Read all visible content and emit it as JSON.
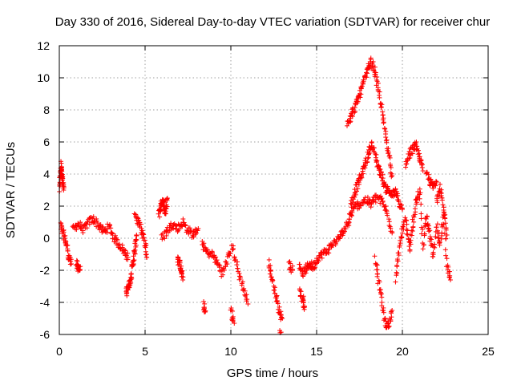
{
  "chart_data": {
    "type": "scatter",
    "title": "Day 330 of 2016, Sidereal Day-to-day VTEC variation (SDTVAR) for receiver chur",
    "xlabel": "GPS time / hours",
    "ylabel": "SDTVAR / TECUs",
    "xlim": [
      0,
      25
    ],
    "ylim": [
      -6,
      12
    ],
    "xticks": [
      0,
      5,
      10,
      15,
      20,
      25
    ],
    "yticks": [
      -6,
      -4,
      -2,
      0,
      2,
      4,
      6,
      8,
      10,
      12
    ],
    "xtick_labels": [
      "0",
      "5",
      "10",
      "15",
      "20",
      "25"
    ],
    "ytick_labels": [
      "-6",
      "-4",
      "-2",
      "0",
      "2",
      "4",
      "6",
      "8",
      "10",
      "12"
    ],
    "grid": true,
    "marker": "+",
    "color": "#ff0000",
    "series": [
      {
        "name": "SDTVAR",
        "segments": [
          {
            "x": [
              0.0,
              0.05,
              0.1,
              0.15,
              0.2,
              0.25
            ],
            "y": [
              3.0,
              3.8,
              4.6,
              4.1,
              3.5,
              3.0
            ]
          },
          {
            "x": [
              0.1,
              0.25,
              0.4,
              0.55,
              0.7
            ],
            "y": [
              0.8,
              0.2,
              -0.3,
              -1.1,
              -1.6
            ]
          },
          {
            "x": [
              0.8,
              1.1,
              1.4,
              1.7,
              2.0,
              2.3,
              2.6,
              2.9,
              3.2,
              3.5,
              3.8,
              4.0
            ],
            "y": [
              0.6,
              0.9,
              0.5,
              1.0,
              1.2,
              0.8,
              0.4,
              0.7,
              0.0,
              -0.4,
              -0.8,
              -1.2
            ]
          },
          {
            "x": [
              1.0,
              1.1,
              1.2
            ],
            "y": [
              -1.5,
              -1.9,
              -2.0
            ]
          },
          {
            "x": [
              3.9,
              4.0,
              4.1,
              4.2,
              4.3,
              4.4,
              4.5
            ],
            "y": [
              -3.4,
              -3.0,
              -2.8,
              -2.2,
              -1.5,
              -0.8,
              0.2
            ]
          },
          {
            "x": [
              4.4,
              4.6,
              4.8,
              5.0,
              5.1
            ],
            "y": [
              1.6,
              1.0,
              0.4,
              -0.4,
              -1.2
            ]
          },
          {
            "x": [
              5.8,
              5.9,
              6.0,
              6.1,
              6.2,
              6.3
            ],
            "y": [
              1.5,
              2.0,
              2.4,
              2.0,
              1.6,
              2.5
            ]
          },
          {
            "x": [
              6.0,
              6.3,
              6.6,
              6.9,
              7.2,
              7.5,
              7.8,
              8.1
            ],
            "y": [
              0.0,
              0.5,
              0.9,
              0.6,
              1.0,
              0.5,
              0.2,
              0.6
            ]
          },
          {
            "x": [
              6.9,
              7.0,
              7.1,
              7.2
            ],
            "y": [
              -1.2,
              -1.6,
              -2.0,
              -2.6
            ]
          },
          {
            "x": [
              8.3,
              8.6,
              8.9,
              9.2,
              9.5,
              9.8,
              10.1,
              10.4,
              10.7,
              11.0
            ],
            "y": [
              -0.2,
              -0.9,
              -1.0,
              -1.5,
              -2.2,
              -1.4,
              -0.5,
              -2.0,
              -3.0,
              -4.1
            ]
          },
          {
            "x": [
              8.4,
              8.5
            ],
            "y": [
              -4.1,
              -4.6
            ]
          },
          {
            "x": [
              10.0,
              10.2
            ],
            "y": [
              -4.4,
              -5.3
            ]
          },
          {
            "x": [
              12.2,
              12.4,
              12.6,
              12.8,
              13.0
            ],
            "y": [
              -1.5,
              -2.5,
              -3.5,
              -4.5,
              -5.0
            ]
          },
          {
            "x": [
              12.9
            ],
            "y": [
              -5.8
            ]
          },
          {
            "x": [
              13.4,
              13.6
            ],
            "y": [
              -1.6,
              -2.0
            ]
          },
          {
            "x": [
              14.0,
              14.2,
              14.4,
              14.6,
              14.8,
              15.0,
              15.3,
              15.6,
              15.9,
              16.2,
              16.5,
              16.8,
              17.0
            ],
            "y": [
              -1.6,
              -2.2,
              -1.9,
              -1.6,
              -1.8,
              -1.3,
              -1.0,
              -0.8,
              -0.4,
              -0.1,
              0.3,
              0.9,
              1.6
            ]
          },
          {
            "x": [
              14.0,
              14.2,
              14.3
            ],
            "y": [
              -3.2,
              -3.8,
              -4.3
            ]
          },
          {
            "x": [
              17.0,
              17.2,
              17.4,
              17.6,
              17.8,
              18.0,
              18.2,
              18.4,
              18.6,
              18.8,
              19.0,
              19.2,
              19.4,
              19.6,
              19.8,
              20.0
            ],
            "y": [
              2.0,
              2.8,
              3.4,
              3.9,
              4.5,
              5.2,
              5.9,
              5.2,
              4.4,
              3.9,
              3.1,
              3.0,
              2.7,
              2.9,
              2.2,
              1.8
            ]
          },
          {
            "x": [
              17.0,
              17.3,
              17.6,
              17.9,
              18.2,
              18.5,
              18.8,
              19.1,
              19.4
            ],
            "y": [
              1.5,
              2.0,
              2.2,
              2.4,
              2.1,
              2.6,
              2.3,
              1.6,
              0.4
            ]
          },
          {
            "x": [
              16.8,
              17.0,
              17.2,
              17.4,
              17.6,
              17.8,
              18.0,
              18.2,
              18.4,
              18.6,
              18.8,
              19.0,
              19.2,
              19.4
            ],
            "y": [
              7.2,
              7.6,
              8.1,
              8.6,
              9.2,
              9.9,
              10.6,
              11.0,
              10.4,
              9.2,
              8.0,
              6.6,
              5.3,
              3.9
            ]
          },
          {
            "x": [
              18.4,
              18.6,
              18.8,
              19.0,
              19.2,
              19.4
            ],
            "y": [
              -1.2,
              -2.6,
              -4.0,
              -5.3,
              -5.5,
              -4.5
            ]
          },
          {
            "x": [
              19.6,
              19.8,
              20.0,
              20.2,
              20.4,
              20.6,
              20.8,
              21.0,
              21.2,
              21.4,
              21.6,
              21.8,
              22.0,
              22.2,
              22.4,
              22.6
            ],
            "y": [
              -2.6,
              -1.0,
              0.5,
              1.2,
              -0.8,
              0.9,
              2.4,
              3.0,
              -0.6,
              1.4,
              0.1,
              -1.2,
              0.8,
              -0.6,
              1.8,
              0.2
            ]
          },
          {
            "x": [
              20.2,
              20.4,
              20.6,
              20.8,
              21.0,
              21.2
            ],
            "y": [
              4.5,
              5.2,
              5.6,
              5.8,
              5.0,
              4.2
            ]
          },
          {
            "x": [
              21.4,
              21.6,
              21.8,
              22.0
            ],
            "y": [
              4.1,
              3.5,
              3.2,
              3.5
            ]
          },
          {
            "x": [
              22.0,
              22.2,
              22.4,
              22.6,
              22.8
            ],
            "y": [
              2.4,
              3.3,
              2.0,
              -1.8,
              -2.6
            ]
          }
        ]
      }
    ]
  }
}
